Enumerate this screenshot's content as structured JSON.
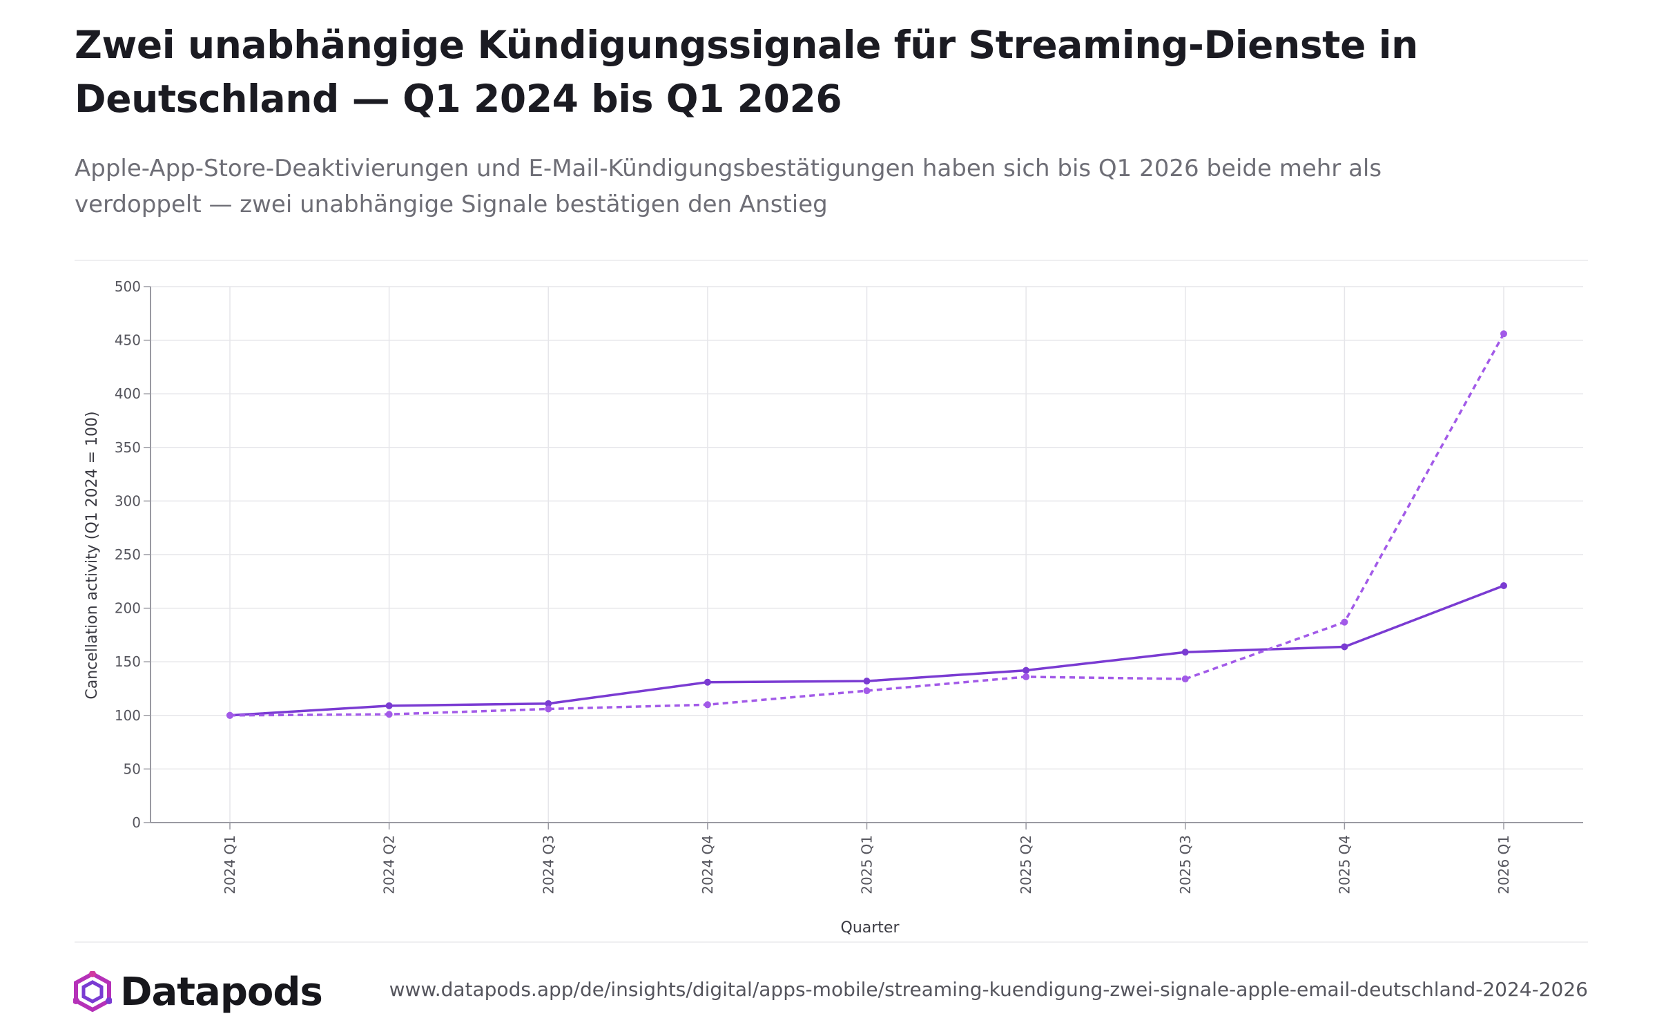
{
  "title": "Zwei unabhängige Kündigungssignale für Streaming-Dienste in Deutschland — Q1 2024 bis Q1 2026",
  "subtitle": "Apple-App-Store-Deaktivierungen und E-Mail-Kündigungsbestätigungen haben sich bis Q1 2026 beide mehr als verdoppelt — zwei unabhängige Signale bestätigen den Anstieg",
  "brand": "Datapods",
  "source_url": "www.datapods.app/de/insights/digital/apps-mobile/streaming-kuendigung-zwei-signale-apple-email-deutschland-2024-2026",
  "colors": {
    "series_solid": "#7a3bd2",
    "series_dashed": "#a25ae8",
    "grid": "#e6e6ea",
    "axis": "#9a9aa2",
    "text": "#55555d"
  },
  "chart_data": {
    "type": "line",
    "xlabel": "Quarter",
    "ylabel": "Cancellation activity (Q1 2024 = 100)",
    "ylim": [
      0,
      500
    ],
    "yticks": [
      0,
      50,
      100,
      150,
      200,
      250,
      300,
      350,
      400,
      450,
      500
    ],
    "grid": true,
    "legend": "none",
    "categories": [
      "2024 Q1",
      "2024 Q2",
      "2024 Q3",
      "2024 Q4",
      "2025 Q1",
      "2025 Q2",
      "2025 Q3",
      "2025 Q4",
      "2026 Q1"
    ],
    "series": [
      {
        "style": "solid",
        "values": [
          100,
          109,
          111,
          131,
          132,
          142,
          159,
          164,
          221
        ]
      },
      {
        "style": "dashed",
        "values": [
          100,
          101,
          106,
          110,
          123,
          136,
          134,
          187,
          456
        ]
      }
    ]
  }
}
